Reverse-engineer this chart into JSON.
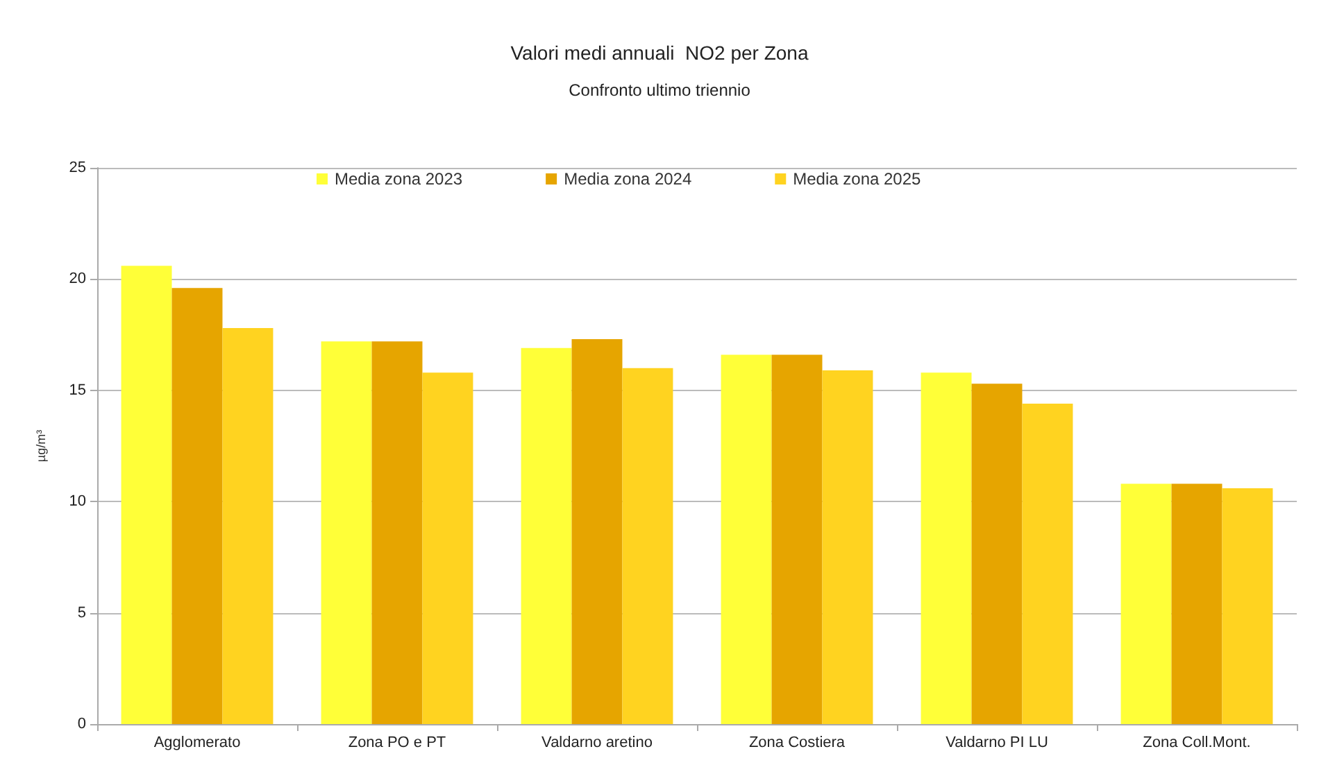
{
  "chart_data": {
    "type": "bar",
    "title": "Valori medi annuali  NO2 per Zona",
    "subtitle": "Confronto ultimo triennio",
    "ylabel": "µg/m³",
    "categories": [
      "Agglomerato",
      "Zona PO e PT",
      "Valdarno aretino",
      "Zona Costiera",
      "Valdarno PI LU",
      "Zona Coll.Mont."
    ],
    "series": [
      {
        "name": "Media zona 2023",
        "color": "#ffff38",
        "values": [
          20.6,
          17.2,
          16.9,
          16.6,
          15.8,
          10.8
        ]
      },
      {
        "name": "Media zona 2024",
        "color": "#e6a500",
        "values": [
          19.6,
          17.2,
          17.3,
          16.6,
          15.3,
          10.8
        ]
      },
      {
        "name": "Media zona 2025",
        "color": "#ffd320",
        "values": [
          17.8,
          15.8,
          16.0,
          15.9,
          14.4,
          10.6
        ]
      }
    ],
    "ylim": [
      0,
      25
    ],
    "yticks": [
      0,
      5,
      10,
      15,
      20,
      25
    ],
    "grid": "y",
    "legend": "top"
  }
}
